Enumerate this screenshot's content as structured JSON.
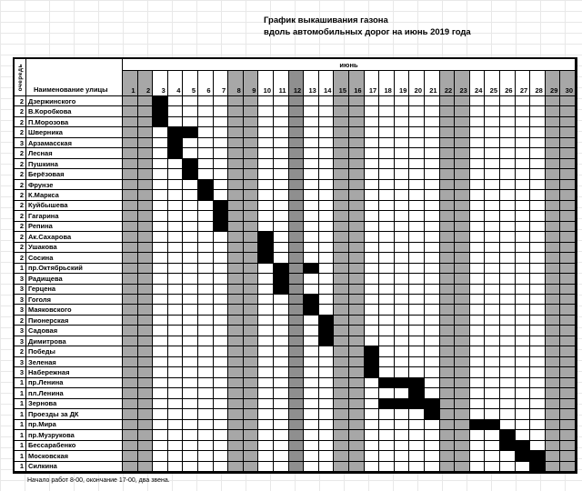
{
  "header": {
    "title_line1": "График выкашивания газона",
    "title_line2": "вдоль автомобильных дорог на июнь 2019 года",
    "queue_column_header": "очередь",
    "street_column_header": "Наименование улицы",
    "month_label": "июнь"
  },
  "footer": {
    "note": "Начало работ 8-00, окончание 17-00, два звена."
  },
  "colors": {
    "weekend_column": "#a7a7a7",
    "holiday_column": "#8f8f8f",
    "mark": "#000000"
  },
  "chart_data": {
    "type": "table",
    "title": "График выкашивания газона вдоль автомобильных дорог на июнь 2019 года",
    "month": "июнь",
    "days": [
      1,
      2,
      3,
      4,
      5,
      6,
      7,
      8,
      9,
      10,
      11,
      12,
      13,
      14,
      15,
      16,
      17,
      18,
      19,
      20,
      21,
      22,
      23,
      24,
      25,
      26,
      27,
      28,
      29,
      30
    ],
    "weekend_days": [
      1,
      2,
      8,
      9,
      15,
      16,
      22,
      23,
      29,
      30
    ],
    "holiday_days": [
      12
    ],
    "rows": [
      {
        "queue": 2,
        "name": "Дзержинского",
        "marked_days": [
          3
        ]
      },
      {
        "queue": 2,
        "name": "В.Коробкова",
        "marked_days": [
          3
        ]
      },
      {
        "queue": 2,
        "name": "П.Морозова",
        "marked_days": [
          3
        ]
      },
      {
        "queue": 2,
        "name": "Шверника",
        "marked_days": [
          4,
          5
        ]
      },
      {
        "queue": 3,
        "name": "Арзамасская",
        "marked_days": [
          4
        ]
      },
      {
        "queue": 2,
        "name": "Лесная",
        "marked_days": [
          4
        ]
      },
      {
        "queue": 2,
        "name": "Пушкина",
        "marked_days": [
          5
        ]
      },
      {
        "queue": 2,
        "name": "Берёзовая",
        "marked_days": [
          5
        ]
      },
      {
        "queue": 2,
        "name": "Фрунзе",
        "marked_days": [
          6
        ]
      },
      {
        "queue": 2,
        "name": "К.Маркса",
        "marked_days": [
          6
        ]
      },
      {
        "queue": 2,
        "name": "Куйбышева",
        "marked_days": [
          7
        ]
      },
      {
        "queue": 2,
        "name": "Гагарина",
        "marked_days": [
          7
        ]
      },
      {
        "queue": 2,
        "name": "Репина",
        "marked_days": [
          7
        ]
      },
      {
        "queue": 2,
        "name": "Ак.Сахарова",
        "marked_days": [
          10
        ]
      },
      {
        "queue": 2,
        "name": "Ушакова",
        "marked_days": [
          10
        ]
      },
      {
        "queue": 2,
        "name": "Сосина",
        "marked_days": [
          10
        ]
      },
      {
        "queue": 1,
        "name": "пр.Октябрьский",
        "marked_days": [
          11,
          13
        ]
      },
      {
        "queue": 3,
        "name": "Радищева",
        "marked_days": [
          11
        ]
      },
      {
        "queue": 3,
        "name": "Герцена",
        "marked_days": [
          11
        ]
      },
      {
        "queue": 3,
        "name": "Гоголя",
        "marked_days": [
          13
        ]
      },
      {
        "queue": 3,
        "name": "Маяковского",
        "marked_days": [
          13
        ]
      },
      {
        "queue": 2,
        "name": "Пионерская",
        "marked_days": [
          14
        ]
      },
      {
        "queue": 3,
        "name": "Садовая",
        "marked_days": [
          14
        ]
      },
      {
        "queue": 3,
        "name": "Димитрова",
        "marked_days": [
          14
        ]
      },
      {
        "queue": 2,
        "name": "Победы",
        "marked_days": [
          17
        ]
      },
      {
        "queue": 3,
        "name": "Зеленая",
        "marked_days": [
          17
        ]
      },
      {
        "queue": 3,
        "name": "Набережная",
        "marked_days": [
          17
        ]
      },
      {
        "queue": 1,
        "name": "пр.Ленина",
        "marked_days": [
          18,
          19,
          20
        ]
      },
      {
        "queue": 1,
        "name": "пл.Ленина",
        "marked_days": [
          20
        ]
      },
      {
        "queue": 1,
        "name": "Зернова",
        "marked_days": [
          18,
          19,
          20,
          21
        ]
      },
      {
        "queue": 1,
        "name": "Проезды за ДК",
        "marked_days": [
          21
        ]
      },
      {
        "queue": 1,
        "name": "пр.Мира",
        "marked_days": [
          24,
          25
        ]
      },
      {
        "queue": 1,
        "name": "пр.Музрукова",
        "marked_days": [
          26
        ]
      },
      {
        "queue": 1,
        "name": "Бессарабенко",
        "marked_days": [
          26,
          27
        ]
      },
      {
        "queue": 1,
        "name": "Московская",
        "marked_days": [
          27,
          28
        ]
      },
      {
        "queue": 1,
        "name": "Силкина",
        "marked_days": [
          28
        ]
      }
    ]
  }
}
